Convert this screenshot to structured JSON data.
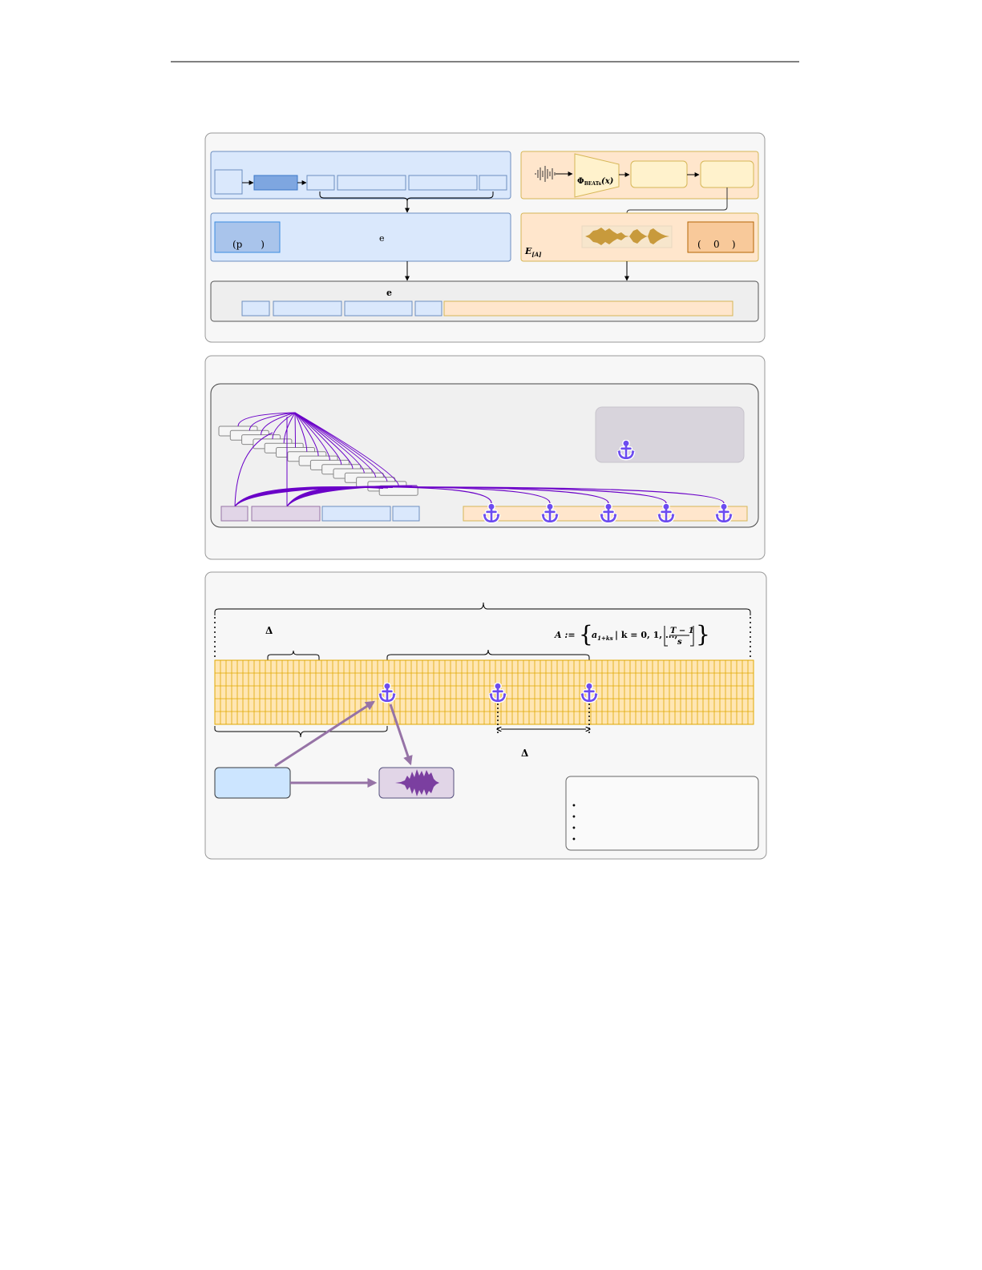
{
  "panel1": {
    "blue_mid_box_label": "(p      )",
    "blue_mid_text": "e",
    "beats_label": "Φ",
    "beats_sub": "BEATs",
    "beats_arg": "(x)",
    "orange_mid_box_label": "(    0    )",
    "embed_label": "E",
    "embed_sub": "[A]",
    "bottom_title": "e"
  },
  "panel3": {
    "delta_top": "Δ",
    "delta_bottom": "Δ",
    "formula": {
      "lhs": "A :=",
      "set_open": "{",
      "element": "a",
      "element_sub": "1+ks",
      "condition": "| k = 0, 1, ...,",
      "numerator": "T − 1",
      "denominator": "s",
      "set_close": "}"
    },
    "legend_bullets": [
      "•",
      "•",
      "•",
      "•"
    ]
  },
  "colors": {
    "blue_fill": "#dae8fc",
    "blue_stroke": "#6c8ebf",
    "orange_fill": "#ffe6cc",
    "orange_stroke": "#d6b656",
    "purple_fill": "#e1d5e7",
    "purple_arrow": "#9673a6",
    "anchor": "#6c4cf0",
    "curve": "#6a00c8",
    "grid_fill": "#ffe6b3",
    "grid_line": "#e0a800"
  },
  "icons": {
    "anchor": "anchor-icon",
    "waveform": "waveform-icon",
    "audio_signal": "audio-signal-icon"
  }
}
